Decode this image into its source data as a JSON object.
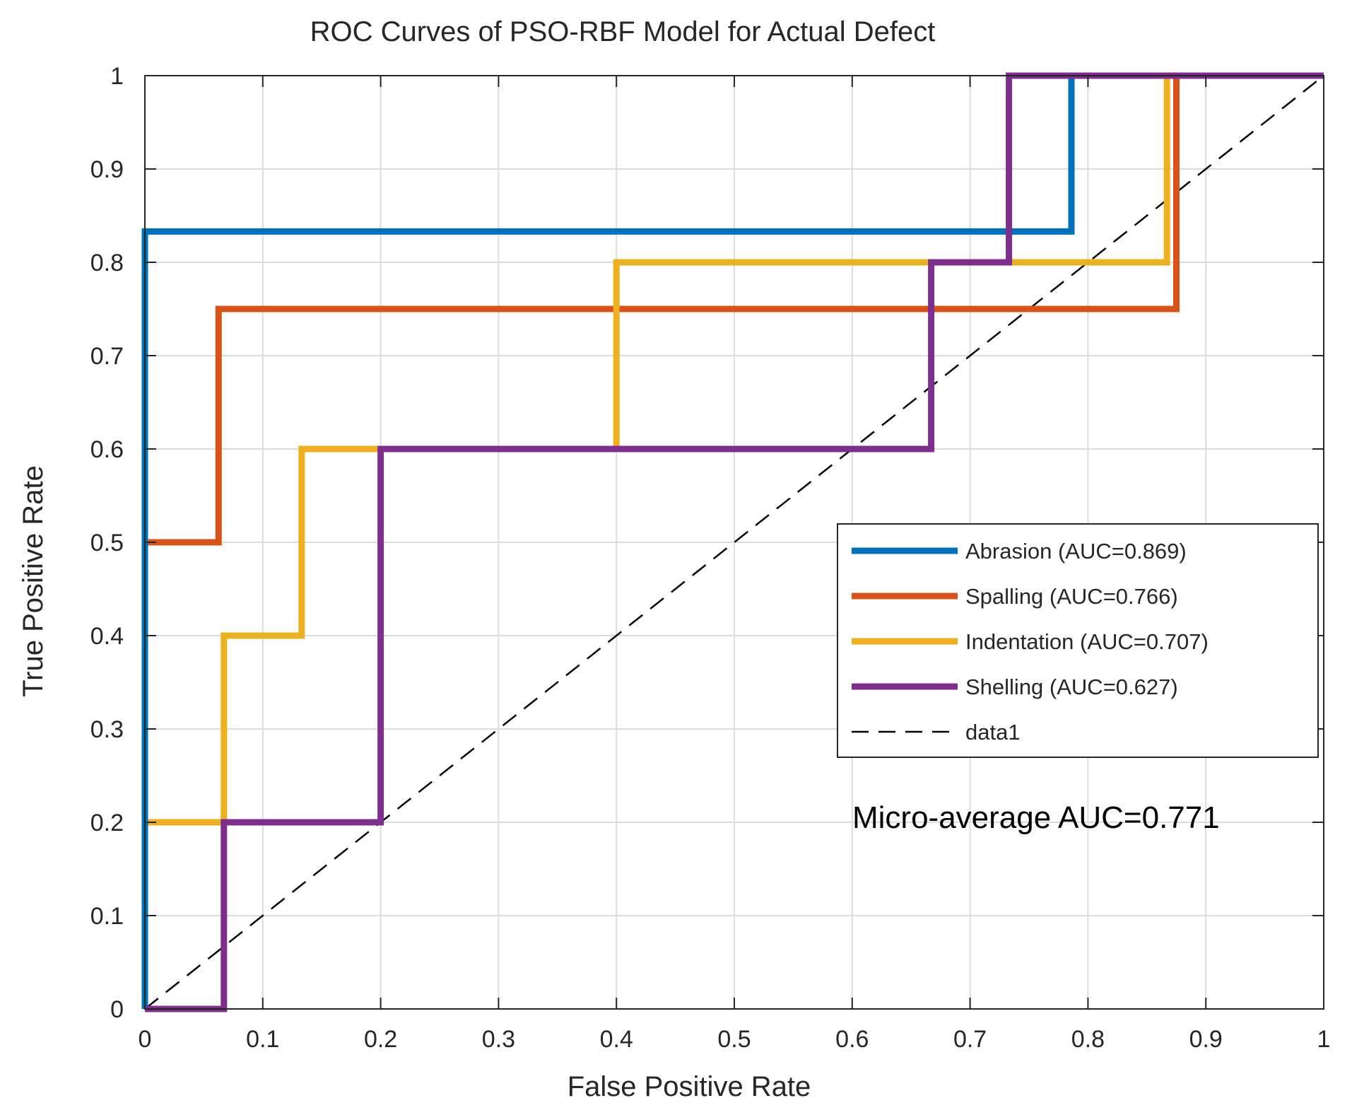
{
  "chart_data": {
    "type": "line",
    "title": "ROC Curves of PSO-RBF Model for Actual Defect",
    "xlabel": "False Positive Rate",
    "ylabel": "True Positive Rate",
    "xlim": [
      0,
      1
    ],
    "ylim": [
      0,
      1
    ],
    "xticks": [
      0,
      0.1,
      0.2,
      0.3,
      0.4,
      0.5,
      0.6,
      0.7,
      0.8,
      0.9,
      1
    ],
    "yticks": [
      0,
      0.1,
      0.2,
      0.3,
      0.4,
      0.5,
      0.6,
      0.7,
      0.8,
      0.9,
      1
    ],
    "xtick_labels": [
      "0",
      "0.1",
      "0.2",
      "0.3",
      "0.4",
      "0.5",
      "0.6",
      "0.7",
      "0.8",
      "0.9",
      "1"
    ],
    "ytick_labels": [
      "0",
      "0.1",
      "0.2",
      "0.3",
      "0.4",
      "0.5",
      "0.6",
      "0.7",
      "0.8",
      "0.9",
      "1"
    ],
    "grid": true,
    "legend_position": "right",
    "series": [
      {
        "name": "Abrasion (AUC=0.869)",
        "color": "#0072BD",
        "style": "solid",
        "x": [
          0,
          0,
          0,
          0.786,
          0.786,
          1
        ],
        "y": [
          0,
          0.5,
          0.833,
          0.833,
          1,
          1
        ]
      },
      {
        "name": "Spalling (AUC=0.766)",
        "color": "#D95319",
        "style": "solid",
        "x": [
          0,
          0,
          0.0625,
          0.0625,
          0.875,
          0.875,
          1
        ],
        "y": [
          0,
          0.5,
          0.5,
          0.75,
          0.75,
          1,
          1
        ]
      },
      {
        "name": "Indentation (AUC=0.707)",
        "color": "#EDB120",
        "style": "solid",
        "x": [
          0,
          0,
          0.067,
          0.067,
          0.133,
          0.133,
          0.2,
          0.4,
          0.4,
          0.867,
          0.867,
          1
        ],
        "y": [
          0,
          0.2,
          0.2,
          0.4,
          0.4,
          0.6,
          0.6,
          0.6,
          0.8,
          0.8,
          1,
          1
        ]
      },
      {
        "name": "Shelling (AUC=0.627)",
        "color": "#7E2F8E",
        "style": "solid",
        "x": [
          0,
          0.067,
          0.067,
          0.2,
          0.2,
          0.667,
          0.667,
          0.733,
          0.733,
          1
        ],
        "y": [
          0,
          0,
          0.2,
          0.2,
          0.6,
          0.6,
          0.8,
          0.8,
          1,
          1
        ]
      },
      {
        "name": "data1",
        "color": "#000000",
        "style": "dashed",
        "x": [
          0,
          1
        ],
        "y": [
          0,
          1
        ]
      }
    ],
    "annotations": [
      {
        "text": "Micro-average AUC=0.771",
        "x": 0.6,
        "y": 0.2
      }
    ]
  }
}
